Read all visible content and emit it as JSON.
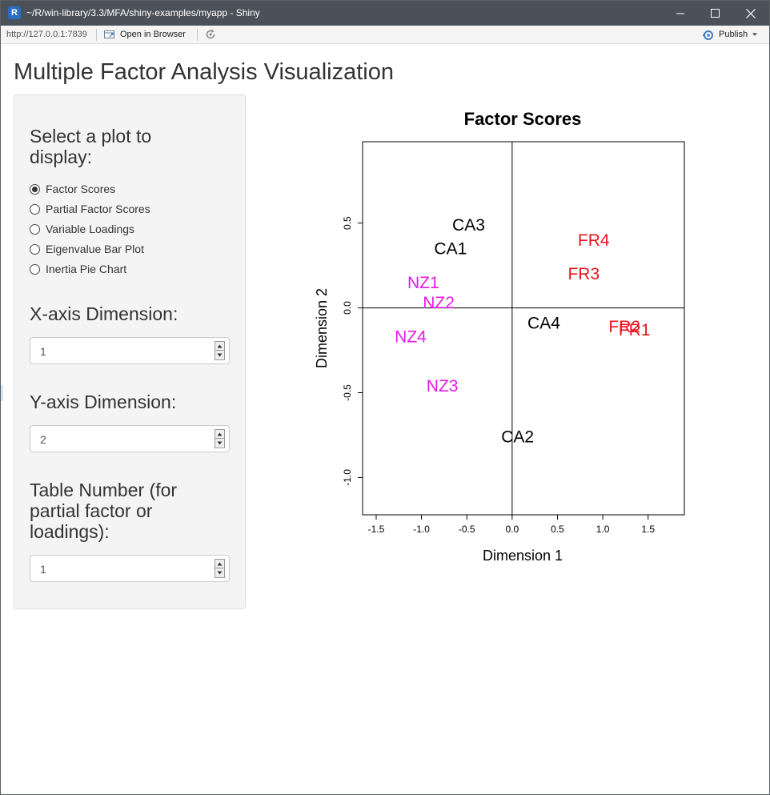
{
  "window": {
    "title": "~/R/win-library/3.3/MFA/shiny-examples/myapp - Shiny",
    "app_icon_letter": "R"
  },
  "toolbar": {
    "url": "http://127.0.0.1:7839",
    "open_in_browser": "Open in Browser",
    "publish": "Publish"
  },
  "page": {
    "title": "Multiple Factor Analysis Visualization"
  },
  "sidebar": {
    "plot_select_label": "Select a plot to display:",
    "plot_options": [
      {
        "label": "Factor Scores",
        "selected": true
      },
      {
        "label": "Partial Factor Scores",
        "selected": false
      },
      {
        "label": "Variable Loadings",
        "selected": false
      },
      {
        "label": "Eigenvalue Bar Plot",
        "selected": false
      },
      {
        "label": "Inertia Pie Chart",
        "selected": false
      }
    ],
    "x_axis_label": "X-axis Dimension:",
    "x_axis_value": "1",
    "y_axis_label": "Y-axis Dimension:",
    "y_axis_value": "2",
    "table_label": "Table Number (for partial factor or loadings):",
    "table_value": "1"
  },
  "chart_data": {
    "type": "scatter",
    "title": "Factor Scores",
    "xlabel": "Dimension 1",
    "ylabel": "Dimension 2",
    "xlim": [
      -1.65,
      1.9
    ],
    "ylim": [
      -1.22,
      0.98
    ],
    "xticks": [
      -1.5,
      -1.0,
      -0.5,
      0.0,
      0.5,
      1.0,
      1.5
    ],
    "xtick_labels": [
      "-1.5",
      "-1.0",
      "-0.5",
      "0.0",
      "0.5",
      "1.0",
      "1.5"
    ],
    "yticks": [
      0.5,
      0.0,
      -0.5,
      -1.0
    ],
    "ytick_labels": [
      "0.5",
      "0.0",
      "-0.5",
      "-1.0"
    ],
    "reference_lines": {
      "x": 0,
      "y": 0
    },
    "colors": {
      "CA": "#000000",
      "FR": "#e8141c",
      "NZ": "#e619e6"
    },
    "points": [
      {
        "label": "CA1",
        "x": -0.68,
        "y": 0.35,
        "group": "CA"
      },
      {
        "label": "CA2",
        "x": 0.06,
        "y": -0.76,
        "group": "CA"
      },
      {
        "label": "CA3",
        "x": -0.48,
        "y": 0.49,
        "group": "CA"
      },
      {
        "label": "CA4",
        "x": 0.35,
        "y": -0.09,
        "group": "CA"
      },
      {
        "label": "FR1",
        "x": 1.35,
        "y": -0.13,
        "group": "FR"
      },
      {
        "label": "FR2",
        "x": 1.24,
        "y": -0.11,
        "group": "FR"
      },
      {
        "label": "FR3",
        "x": 0.79,
        "y": 0.2,
        "group": "FR"
      },
      {
        "label": "FR4",
        "x": 0.9,
        "y": 0.4,
        "group": "FR"
      },
      {
        "label": "NZ1",
        "x": -0.98,
        "y": 0.15,
        "group": "NZ"
      },
      {
        "label": "NZ2",
        "x": -0.81,
        "y": 0.03,
        "group": "NZ"
      },
      {
        "label": "NZ3",
        "x": -0.77,
        "y": -0.46,
        "group": "NZ"
      },
      {
        "label": "NZ4",
        "x": -1.12,
        "y": -0.17,
        "group": "NZ"
      }
    ]
  }
}
